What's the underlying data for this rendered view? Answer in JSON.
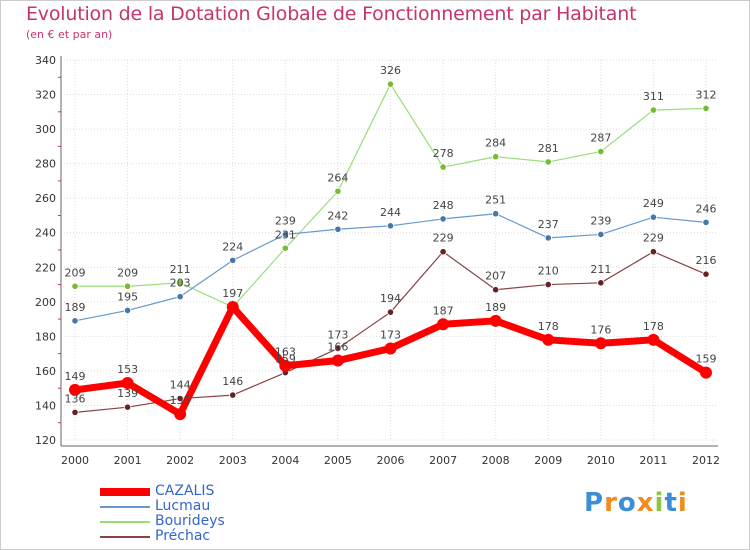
{
  "header": {
    "title": "Evolution de la Dotation Globale de Fonctionnement par Habitant",
    "subtitle": "(en € et par an)"
  },
  "brand": {
    "letters": [
      "P",
      "r",
      "o",
      "x",
      "i",
      "t",
      "i"
    ],
    "colors": [
      "#3a8fd6",
      "#f28c1e",
      "#3a8fd6",
      "#f28c1e",
      "#8cc63f",
      "#3a8fd6",
      "#f28c1e"
    ]
  },
  "chart_data": {
    "type": "line",
    "x": [
      2000,
      2001,
      2002,
      2003,
      2004,
      2005,
      2006,
      2007,
      2008,
      2009,
      2010,
      2011,
      2012
    ],
    "ylim": [
      120,
      340
    ],
    "yticks": [
      120,
      140,
      160,
      180,
      200,
      220,
      240,
      260,
      280,
      300,
      320,
      340
    ],
    "grid": true,
    "legend_position": "bottom-left",
    "series": [
      {
        "name": "Bourideys",
        "color": "#99dd77",
        "marker": "#77bb33",
        "width": 1.2,
        "values": [
          209,
          209,
          211,
          197,
          231,
          264,
          326,
          278,
          284,
          281,
          287,
          311,
          312
        ],
        "labels": [
          "209",
          "209",
          "211",
          "",
          "231",
          "264",
          "326",
          "278",
          "284",
          "281",
          "287",
          "311",
          "312"
        ]
      },
      {
        "name": "Lucmau",
        "color": "#6699cc",
        "marker": "#4477aa",
        "width": 1.2,
        "values": [
          189,
          195,
          203,
          224,
          239,
          242,
          244,
          248,
          251,
          237,
          239,
          249,
          246
        ],
        "labels": [
          "189",
          "195",
          "203",
          "224",
          "239",
          "242",
          "244",
          "248",
          "251",
          "237",
          "239",
          "249",
          "246"
        ]
      },
      {
        "name": "Préchac",
        "color": "#884444",
        "marker": "#662222",
        "width": 1.2,
        "values": [
          136,
          139,
          144,
          146,
          159,
          173,
          194,
          229,
          207,
          210,
          211,
          229,
          216
        ],
        "labels": [
          "136",
          "139",
          "144",
          "146",
          "159",
          "173",
          "194",
          "229",
          "207",
          "210",
          "211",
          "229",
          "216"
        ]
      },
      {
        "name": "CAZALIS",
        "color": "#ff0000",
        "marker": "#ff0000",
        "width": 7,
        "values": [
          149,
          153,
          135,
          197,
          163,
          166,
          173,
          187,
          189,
          178,
          176,
          178,
          159
        ],
        "labels": [
          "149",
          "153",
          "135",
          "197",
          "163",
          "166",
          "173",
          "187",
          "189",
          "178",
          "176",
          "178",
          "159"
        ]
      }
    ],
    "legend_order": [
      "CAZALIS",
      "Lucmau",
      "Bourideys",
      "Préchac"
    ]
  }
}
